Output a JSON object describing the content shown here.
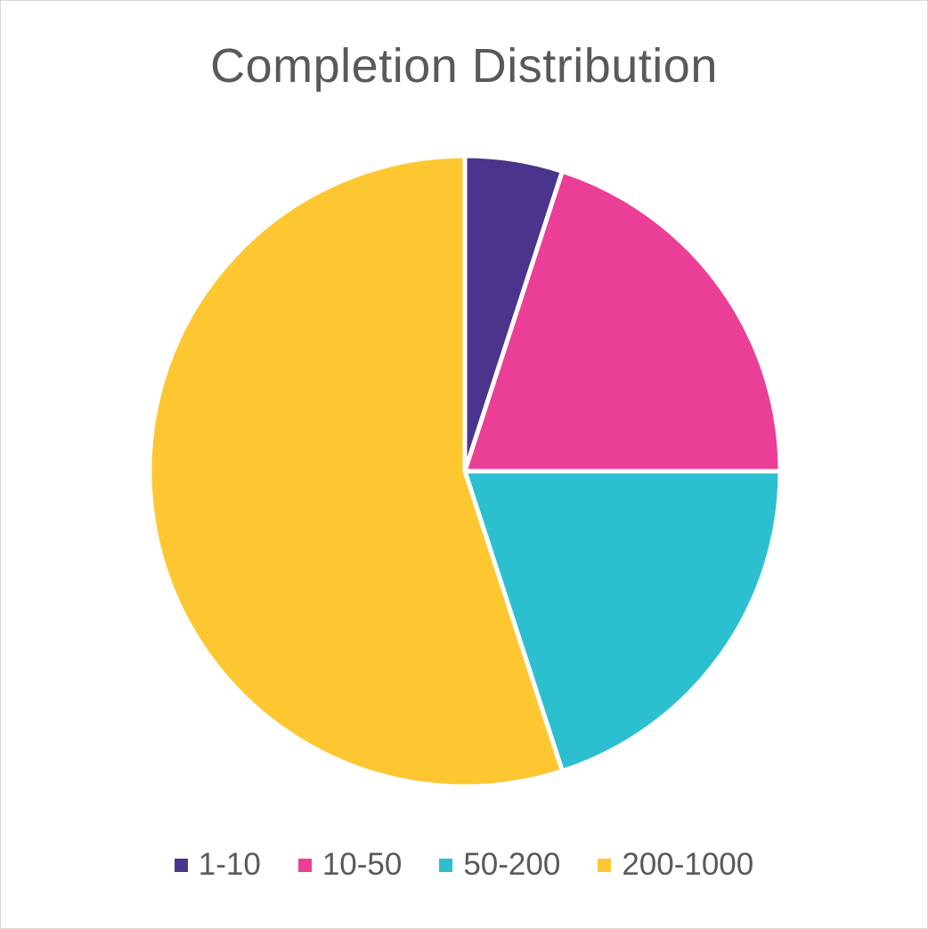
{
  "chart_data": {
    "type": "pie",
    "title": "Completion Distribution",
    "categories": [
      "1-10",
      "10-50",
      "50-200",
      "200-1000"
    ],
    "values": [
      5,
      20,
      20,
      55
    ],
    "colors": [
      "#4b348c",
      "#ea3e97",
      "#2cbfcf",
      "#fec732"
    ],
    "start_angle_deg": 0,
    "direction": "clockwise",
    "legend_position": "bottom"
  },
  "legend": [
    {
      "label": "1-10",
      "color": "#4b348c"
    },
    {
      "label": "10-50",
      "color": "#ea3e97"
    },
    {
      "label": "50-200",
      "color": "#2cbfcf"
    },
    {
      "label": "200-1000",
      "color": "#fec732"
    }
  ]
}
